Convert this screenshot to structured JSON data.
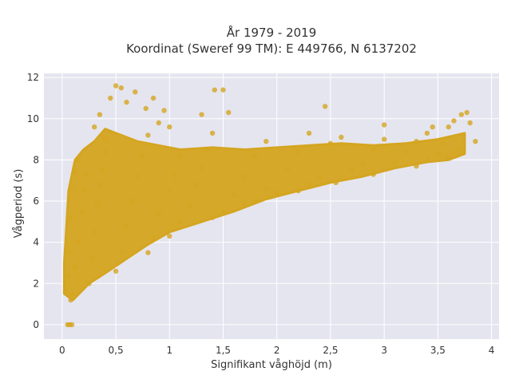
{
  "chart_data": {
    "type": "scatter",
    "title": "År 1979 - 2019",
    "subtitle": "Koordinat (Sweref 99 TM): E 449766, N 6137202",
    "xlabel": "Signifikant våghöjd (m)",
    "ylabel": "Vågperiod (s)",
    "xlim": [
      -0.17,
      4.07
    ],
    "ylim": [
      -0.7,
      12.2
    ],
    "x_ticks": [
      0,
      0.5,
      1,
      1.5,
      2,
      2.5,
      3,
      3.5,
      4
    ],
    "x_tick_labels": [
      "0",
      "0,5",
      "1",
      "1,5",
      "2",
      "2,5",
      "3",
      "3,5",
      "4"
    ],
    "y_ticks": [
      0,
      2,
      4,
      6,
      8,
      10,
      12
    ],
    "y_tick_labels": [
      "0",
      "2",
      "4",
      "6",
      "8",
      "10",
      "12"
    ],
    "grid": true,
    "legend": "none",
    "colors": {
      "marker": "#d4a520",
      "plot_bg": "#e5e5ef",
      "grid": "#ffffff",
      "text": "#333333"
    },
    "series": [
      {
        "points": [
          [
            0.05,
            0.0
          ],
          [
            0.07,
            0.0
          ],
          [
            0.09,
            0.0
          ],
          [
            0.03,
            1.6
          ],
          [
            0.05,
            2.4
          ],
          [
            0.06,
            3.5
          ],
          [
            0.08,
            5.2
          ],
          [
            0.1,
            6.6
          ],
          [
            0.12,
            7.4
          ],
          [
            0.15,
            8.0
          ],
          [
            0.08,
            1.2
          ],
          [
            0.1,
            1.5
          ],
          [
            0.12,
            2.8
          ],
          [
            0.15,
            4.0
          ],
          [
            0.18,
            5.5
          ],
          [
            0.2,
            6.5
          ],
          [
            0.22,
            7.3
          ],
          [
            0.25,
            2.0
          ],
          [
            0.28,
            3.2
          ],
          [
            0.3,
            4.5
          ],
          [
            0.32,
            5.8
          ],
          [
            0.35,
            6.8
          ],
          [
            0.38,
            7.5
          ],
          [
            0.4,
            8.4
          ],
          [
            0.3,
            9.6
          ],
          [
            0.35,
            10.2
          ],
          [
            0.4,
            9.0
          ],
          [
            0.45,
            11.0
          ],
          [
            0.5,
            11.6
          ],
          [
            0.55,
            11.5
          ],
          [
            0.6,
            10.8
          ],
          [
            0.5,
            2.6
          ],
          [
            0.55,
            3.5
          ],
          [
            0.6,
            4.8
          ],
          [
            0.65,
            6.0
          ],
          [
            0.7,
            7.2
          ],
          [
            0.75,
            8.2
          ],
          [
            0.8,
            9.2
          ],
          [
            0.68,
            11.3
          ],
          [
            0.78,
            10.5
          ],
          [
            0.85,
            11.0
          ],
          [
            0.9,
            9.8
          ],
          [
            0.95,
            10.4
          ],
          [
            1.0,
            9.6
          ],
          [
            0.8,
            3.5
          ],
          [
            0.85,
            4.2
          ],
          [
            0.9,
            5.4
          ],
          [
            1.0,
            6.5
          ],
          [
            1.05,
            7.3
          ],
          [
            1.1,
            8.2
          ],
          [
            1.0,
            4.3
          ],
          [
            1.1,
            5.0
          ],
          [
            1.2,
            5.8
          ],
          [
            1.25,
            6.8
          ],
          [
            1.3,
            7.6
          ],
          [
            1.35,
            8.5
          ],
          [
            1.4,
            9.3
          ],
          [
            1.3,
            10.2
          ],
          [
            1.42,
            11.4
          ],
          [
            1.5,
            11.4
          ],
          [
            1.55,
            10.3
          ],
          [
            1.4,
            5.2
          ],
          [
            1.5,
            5.5
          ],
          [
            1.6,
            6.3
          ],
          [
            1.7,
            7.2
          ],
          [
            1.8,
            8.2
          ],
          [
            1.9,
            8.9
          ],
          [
            1.7,
            5.9
          ],
          [
            1.8,
            6.0
          ],
          [
            1.9,
            6.6
          ],
          [
            2.0,
            6.4
          ],
          [
            2.1,
            7.5
          ],
          [
            2.2,
            8.4
          ],
          [
            2.3,
            9.3
          ],
          [
            2.2,
            6.5
          ],
          [
            2.3,
            6.8
          ],
          [
            2.4,
            7.2
          ],
          [
            2.45,
            10.6
          ],
          [
            2.5,
            8.8
          ],
          [
            2.6,
            9.1
          ],
          [
            2.55,
            6.9
          ],
          [
            2.7,
            7.5
          ],
          [
            2.8,
            7.8
          ],
          [
            2.9,
            8.5
          ],
          [
            3.0,
            9.0
          ],
          [
            3.0,
            9.7
          ],
          [
            2.9,
            7.3
          ],
          [
            3.1,
            7.9
          ],
          [
            3.2,
            8.4
          ],
          [
            3.3,
            8.9
          ],
          [
            3.4,
            9.3
          ],
          [
            3.45,
            9.6
          ],
          [
            3.3,
            7.7
          ],
          [
            3.4,
            8.0
          ],
          [
            3.5,
            8.3
          ],
          [
            3.55,
            8.8
          ],
          [
            3.6,
            9.6
          ],
          [
            3.65,
            9.9
          ],
          [
            3.6,
            8.1
          ],
          [
            3.7,
            8.4
          ],
          [
            3.72,
            10.2
          ],
          [
            3.77,
            10.3
          ],
          [
            3.8,
            9.8
          ],
          [
            3.85,
            8.9
          ]
        ]
      }
    ]
  }
}
